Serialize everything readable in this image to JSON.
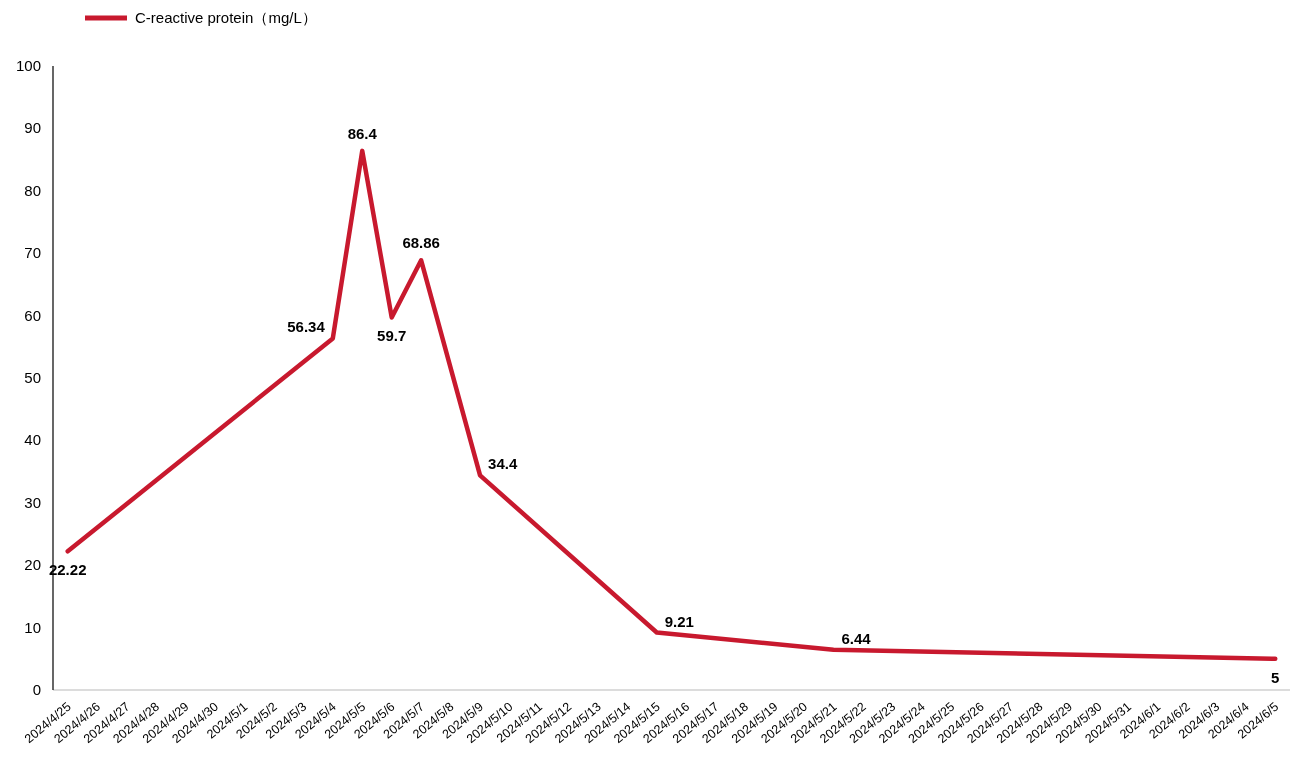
{
  "chart_data": {
    "type": "line",
    "x": [
      "2024-04-25",
      "2024-05-04",
      "2024-05-05",
      "2024-05-06",
      "2024-05-07",
      "2024-05-09",
      "2024-05-15",
      "2024-05-21",
      "2024-06-05"
    ],
    "series": [
      {
        "name": "C-reactive protein（mg/L）",
        "color": "#c8192e",
        "values": [
          22.22,
          56.34,
          86.4,
          59.7,
          68.86,
          34.4,
          9.21,
          6.44,
          5
        ]
      }
    ],
    "data_labels": true,
    "legend": "top left",
    "ylim": [
      0,
      100
    ],
    "yticks": [
      0,
      10,
      20,
      30,
      40,
      50,
      60,
      70,
      80,
      90,
      100
    ],
    "xlim": [
      "2024-04-24T12:00",
      "2024-06-05T12:00"
    ],
    "xticks": [
      {
        "value": "2024-04-25",
        "label": "2024/4/25"
      },
      {
        "value": "2024-04-26",
        "label": "2024/4/26"
      },
      {
        "value": "2024-04-27",
        "label": "2024/4/27"
      },
      {
        "value": "2024-04-28",
        "label": "2024/4/28"
      },
      {
        "value": "2024-04-29",
        "label": "2024/4/29"
      },
      {
        "value": "2024-04-30",
        "label": "2024/4/30"
      },
      {
        "value": "2024-05-01",
        "label": "2024/5/1"
      },
      {
        "value": "2024-05-02",
        "label": "2024/5/2"
      },
      {
        "value": "2024-05-03",
        "label": "2024/5/3"
      },
      {
        "value": "2024-05-04",
        "label": "2024/5/4"
      },
      {
        "value": "2024-05-05",
        "label": "2024/5/5"
      },
      {
        "value": "2024-05-06",
        "label": "2024/5/6"
      },
      {
        "value": "2024-05-07",
        "label": "2024/5/7"
      },
      {
        "value": "2024-05-08",
        "label": "2024/5/8"
      },
      {
        "value": "2024-05-09",
        "label": "2024/5/9"
      },
      {
        "value": "2024-05-10",
        "label": "2024/5/10"
      },
      {
        "value": "2024-05-11",
        "label": "2024/5/11"
      },
      {
        "value": "2024-05-12",
        "label": "2024/5/12"
      },
      {
        "value": "2024-05-13",
        "label": "2024/5/13"
      },
      {
        "value": "2024-05-14",
        "label": "2024/5/14"
      },
      {
        "value": "2024-05-15",
        "label": "2024/5/15"
      },
      {
        "value": "2024-05-16",
        "label": "2024/5/16"
      },
      {
        "value": "2024-05-17",
        "label": "2024/5/17"
      },
      {
        "value": "2024-05-18",
        "label": "2024/5/18"
      },
      {
        "value": "2024-05-19",
        "label": "2024/5/19"
      },
      {
        "value": "2024-05-20",
        "label": "2024/5/20"
      },
      {
        "value": "2024-05-21",
        "label": "2024/5/21"
      },
      {
        "value": "2024-05-22",
        "label": "2024/5/22"
      },
      {
        "value": "2024-05-23",
        "label": "2024/5/23"
      },
      {
        "value": "2024-05-24",
        "label": "2024/5/24"
      },
      {
        "value": "2024-05-25",
        "label": "2024/5/25"
      },
      {
        "value": "2024-05-26",
        "label": "2024/5/26"
      },
      {
        "value": "2024-05-27",
        "label": "2024/5/27"
      },
      {
        "value": "2024-05-28",
        "label": "2024/5/28"
      },
      {
        "value": "2024-05-29",
        "label": "2024/5/29"
      },
      {
        "value": "2024-05-30",
        "label": "2024/5/30"
      },
      {
        "value": "2024-05-31",
        "label": "2024/5/31"
      },
      {
        "value": "2024-06-01",
        "label": "2024/6/1"
      },
      {
        "value": "2024-06-02",
        "label": "2024/6/2"
      },
      {
        "value": "2024-06-03",
        "label": "2024/6/3"
      },
      {
        "value": "2024-06-04",
        "label": "2024/6/4"
      },
      {
        "value": "2024-06-05",
        "label": "2024/6/5"
      }
    ]
  }
}
